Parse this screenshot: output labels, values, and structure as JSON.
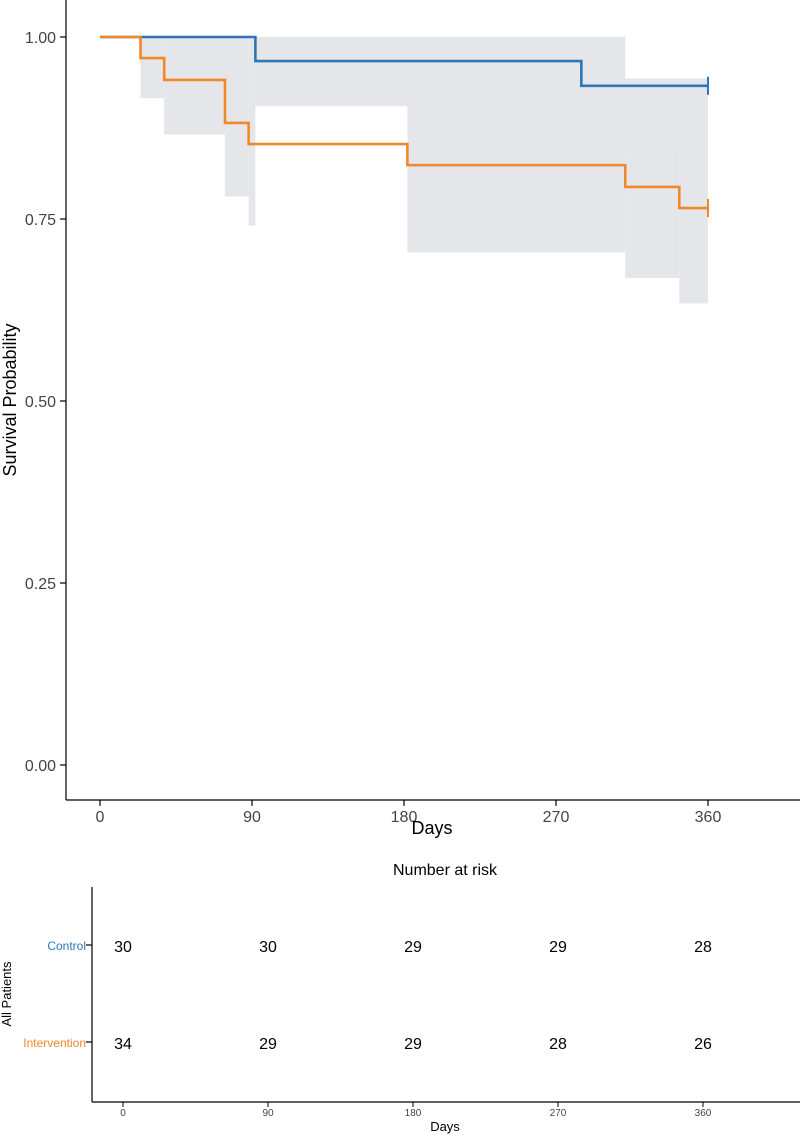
{
  "chart_data": [
    {
      "type": "line",
      "subtype": "kaplan-meier",
      "title": "",
      "xlabel": "Days",
      "ylabel": "Survival Probability",
      "xlim": [
        -20,
        400
      ],
      "ylim": [
        -0.05,
        1.05
      ],
      "x_ticks": [
        0,
        90,
        180,
        270,
        360
      ],
      "x_tick_labels": [
        "0",
        "90",
        "180",
        "270",
        "360"
      ],
      "y_ticks": [
        0.0,
        0.25,
        0.5,
        0.75,
        1.0
      ],
      "y_tick_labels": [
        "0.00",
        "0.25",
        "0.50",
        "0.75",
        "1.00"
      ],
      "grid": false,
      "legend": "none",
      "series": [
        {
          "name": "Control",
          "color": "#2e75b6",
          "steps": [
            [
              0,
              1.0
            ],
            [
              24,
              1.0
            ],
            [
              92,
              0.967
            ],
            [
              285,
              0.933
            ],
            [
              360,
              0.933
            ]
          ],
          "censor_at": 360,
          "ci_band": [
            [
              0,
              1.0,
              1.0
            ],
            [
              92,
              0.905,
              1.0
            ],
            [
              285,
              0.848,
              1.0
            ],
            [
              311,
              0.848,
              0.943
            ],
            [
              360,
              0.848,
              0.943
            ]
          ]
        },
        {
          "name": "Intervention",
          "color": "#f0882a",
          "steps": [
            [
              0,
              1.0
            ],
            [
              24,
              0.971
            ],
            [
              38,
              0.941
            ],
            [
              74,
              0.882
            ],
            [
              88,
              0.853
            ],
            [
              182,
              0.824
            ],
            [
              311,
              0.794
            ],
            [
              343,
              0.765
            ],
            [
              360,
              0.765
            ]
          ],
          "censor_at": 360,
          "ci_band": [
            [
              0,
              1.0,
              1.0
            ],
            [
              24,
              0.916,
              1.0
            ],
            [
              38,
              0.866,
              1.0
            ],
            [
              74,
              0.781,
              1.0
            ],
            [
              88,
              0.741,
              1.0
            ],
            [
              92,
              0.905,
              1.0
            ],
            [
              182,
              0.704,
              1.0
            ],
            [
              285,
              0.704,
              1.0
            ],
            [
              311,
              0.669,
              0.943
            ],
            [
              343,
              0.634,
              0.943
            ],
            [
              360,
              0.634,
              0.943
            ]
          ]
        }
      ]
    },
    {
      "type": "table",
      "title": "Number at risk",
      "xlabel": "Days",
      "ylabel": "All Patients",
      "x_ticks": [
        0,
        90,
        180,
        270,
        360
      ],
      "x_tick_labels": [
        "0",
        "90",
        "180",
        "270",
        "360"
      ],
      "rows": [
        {
          "name": "Control",
          "color": "#2e75b6",
          "values": [
            "30",
            "30",
            "29",
            "29",
            "28"
          ]
        },
        {
          "name": "Intervention",
          "color": "#f0882a",
          "values": [
            "34",
            "29",
            "29",
            "28",
            "26"
          ]
        }
      ]
    }
  ]
}
